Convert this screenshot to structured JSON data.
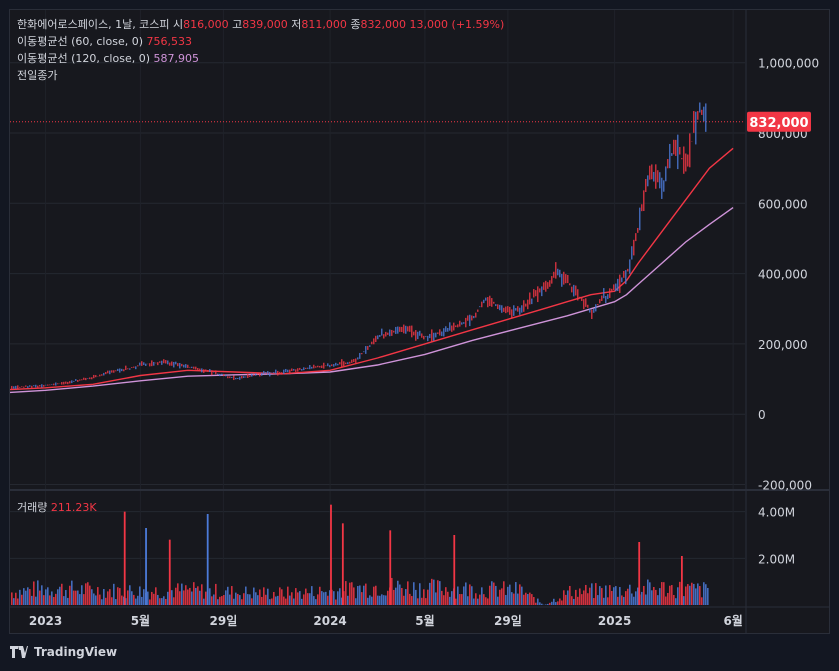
{
  "header": {
    "symbol": "한화에어로스페이스, 1날, 코스피",
    "open_label": "시",
    "open": "816,000",
    "high_label": "고",
    "high": "839,000",
    "low_label": "저",
    "low": "811,000",
    "close_label": "종",
    "close": "832,000",
    "change": "13,000 (+1.59%)"
  },
  "indicators": {
    "ma60_label": "이동평균선 (60, close, 0)",
    "ma60_value": "756,533",
    "ma120_label": "이동평균선 (120, close, 0)",
    "ma120_value": "587,905",
    "prev_close_label": "전일종가"
  },
  "volume": {
    "label": "거래량",
    "value": "211.23K"
  },
  "footer": {
    "brand": "TradingView"
  },
  "colors": {
    "up": "#f23645",
    "down": "#4c7bd9",
    "ma60": "#f23645",
    "ma120": "#ce93d8"
  },
  "chart_data": {
    "type": "line",
    "price_axis": {
      "ticks": [
        -200000,
        0,
        200000,
        400000,
        600000,
        800000,
        1000000
      ],
      "tick_labels": [
        "-200,000",
        "0",
        "200,000",
        "400,000",
        "600,000",
        "800,000",
        "1,000,000"
      ],
      "range": [
        -210000,
        1150000
      ]
    },
    "last_price": 832000,
    "last_price_label": "832,000",
    "volume_axis": {
      "ticks": [
        2000000,
        4000000
      ],
      "tick_labels": [
        "2.00M",
        "4.00M"
      ],
      "range": [
        0,
        4500000
      ]
    },
    "time_axis": {
      "labels": [
        "2023",
        "5월",
        "29일",
        "2024",
        "5월",
        "29일",
        "2025",
        "6월"
      ],
      "positions": [
        0,
        4,
        7.5,
        12,
        16,
        19.5,
        24,
        29
      ]
    },
    "time_range": [
      -1.5,
      29.5
    ],
    "series": [
      {
        "name": "price",
        "x": [
          -1.5,
          -1,
          0,
          1,
          2,
          3,
          3.5,
          4,
          5,
          6,
          7,
          7.5,
          8,
          9,
          10,
          11,
          12,
          13,
          13.5,
          14,
          15,
          15.5,
          16,
          17,
          17.5,
          18,
          18.5,
          19,
          19.5,
          20,
          20.5,
          21,
          21.5,
          22,
          22.5,
          23,
          23.5,
          24,
          24.5,
          25,
          25.3,
          25.5,
          26,
          26.5,
          27,
          27.5,
          28,
          28.5,
          29
        ],
        "values": [
          75000,
          78000,
          82000,
          92000,
          105000,
          125000,
          130000,
          140000,
          150000,
          135000,
          120000,
          110000,
          100000,
          115000,
          120000,
          130000,
          140000,
          150000,
          185000,
          220000,
          245000,
          230000,
          220000,
          240000,
          255000,
          275000,
          330000,
          310000,
          290000,
          300000,
          330000,
          360000,
          405000,
          375000,
          330000,
          290000,
          330000,
          360000,
          400000,
          540000,
          640000,
          700000,
          650000,
          770000,
          700000,
          870000,
          820000,
          850000,
          832000
        ]
      },
      {
        "name": "이동평균선 (60, close, 0)",
        "x": [
          -1.5,
          0,
          2,
          4,
          6,
          8,
          10,
          12,
          14,
          16,
          18,
          20,
          21,
          22,
          23,
          24,
          24.5,
          25,
          26,
          27,
          28,
          29
        ],
        "values": [
          70000,
          75000,
          85000,
          110000,
          125000,
          120000,
          115000,
          125000,
          160000,
          200000,
          240000,
          280000,
          300000,
          320000,
          340000,
          350000,
          380000,
          430000,
          520000,
          610000,
          700000,
          756533
        ]
      },
      {
        "name": "이동평균선 (120, close, 0)",
        "x": [
          -1.5,
          0,
          2,
          4,
          6,
          8,
          10,
          12,
          14,
          16,
          18,
          20,
          22,
          24,
          24.5,
          25,
          26,
          27,
          28,
          29
        ],
        "values": [
          62000,
          68000,
          80000,
          95000,
          108000,
          112000,
          115000,
          120000,
          140000,
          170000,
          210000,
          245000,
          280000,
          320000,
          340000,
          370000,
          430000,
          490000,
          540000,
          587905
        ]
      }
    ],
    "volume_profile": {
      "x": [
        -1.5,
        0,
        2,
        4,
        6,
        8,
        10,
        12,
        14,
        16,
        18,
        20,
        21,
        22,
        23,
        24,
        25,
        26,
        27,
        28,
        29
      ],
      "values": [
        600000,
        800000,
        700000,
        650000,
        700000,
        600000,
        550000,
        650000,
        900000,
        800000,
        750000,
        700000,
        0,
        600000,
        650000,
        700000,
        750000,
        800000,
        750000,
        700000,
        650000
      ]
    },
    "volume_spikes": [
      {
        "x": 3.3,
        "value": 4000000,
        "up": true
      },
      {
        "x": 4.2,
        "value": 3300000,
        "up": false
      },
      {
        "x": 5.2,
        "value": 2800000,
        "up": true
      },
      {
        "x": 6.8,
        "value": 3900000,
        "up": false
      },
      {
        "x": 12.0,
        "value": 4300000,
        "up": true
      },
      {
        "x": 12.5,
        "value": 3500000,
        "up": true
      },
      {
        "x": 14.5,
        "value": 3200000,
        "up": true
      },
      {
        "x": 17.2,
        "value": 3000000,
        "up": true
      },
      {
        "x": 25.0,
        "value": 2700000,
        "up": true
      },
      {
        "x": 26.8,
        "value": 2100000,
        "up": true
      }
    ]
  }
}
